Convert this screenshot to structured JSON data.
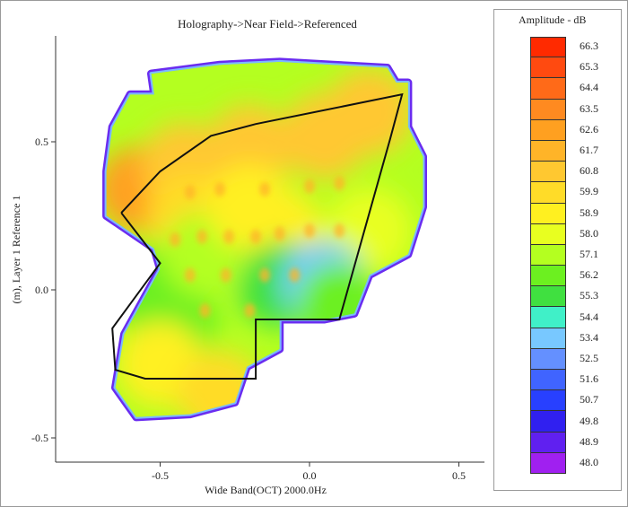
{
  "window": {
    "title": "Holography->Near Field->Referenced"
  },
  "legend": {
    "title": "Amplitude - dB",
    "levels": [
      "66.3",
      "65.3",
      "64.4",
      "63.5",
      "62.6",
      "61.7",
      "60.8",
      "59.9",
      "58.9",
      "58.0",
      "57.1",
      "56.2",
      "55.3",
      "54.4",
      "53.4",
      "52.5",
      "51.6",
      "50.7",
      "49.8",
      "48.9",
      "48.0"
    ],
    "colors": [
      "#ff2a00",
      "#ff4a10",
      "#ff6a18",
      "#ff8a20",
      "#ffa020",
      "#ffb428",
      "#ffc830",
      "#ffdc28",
      "#fff020",
      "#e8ff20",
      "#b4ff20",
      "#6cf020",
      "#40e040",
      "#40f0c8",
      "#78c8ff",
      "#6490ff",
      "#4064ff",
      "#2840ff",
      "#3020f0",
      "#6020f0",
      "#a020f0"
    ]
  },
  "chart_data": {
    "type": "heatmap",
    "title": "Holography->Near Field->Referenced",
    "xlabel": "Wide Band(OCT) 2000.0Hz",
    "ylabel": "(m), Layer 1 Reference 1",
    "x_ticks": [
      "-0.5",
      "0.0",
      "0.5"
    ],
    "y_ticks": [
      "0.5",
      "0.0",
      "-0.5"
    ],
    "x_tick_values": [
      -0.5,
      0.0,
      0.5
    ],
    "y_tick_values": [
      0.5,
      0.0,
      -0.5
    ],
    "xlim": [
      -0.85,
      0.6
    ],
    "ylim": [
      -0.55,
      0.86
    ],
    "value_range": [
      48.0,
      66.3
    ],
    "units": "dB",
    "grid": false,
    "colorbar_position": "right",
    "measured_region_outline": [
      [
        -0.6,
        0.66
      ],
      [
        -0.52,
        0.66
      ],
      [
        -0.53,
        0.73
      ],
      [
        -0.3,
        0.76
      ],
      [
        -0.1,
        0.77
      ],
      [
        0.08,
        0.76
      ],
      [
        0.26,
        0.75
      ],
      [
        0.29,
        0.7
      ],
      [
        0.33,
        0.7
      ],
      [
        0.33,
        0.55
      ],
      [
        0.38,
        0.45
      ],
      [
        0.38,
        0.28
      ],
      [
        0.33,
        0.12
      ],
      [
        0.2,
        0.05
      ],
      [
        0.15,
        -0.08
      ],
      [
        0.05,
        -0.1
      ],
      [
        -0.1,
        -0.1
      ],
      [
        -0.1,
        -0.2
      ],
      [
        -0.21,
        -0.26
      ],
      [
        -0.25,
        -0.38
      ],
      [
        -0.4,
        -0.42
      ],
      [
        -0.58,
        -0.43
      ],
      [
        -0.65,
        -0.33
      ],
      [
        -0.62,
        -0.15
      ],
      [
        -0.5,
        0.07
      ],
      [
        -0.52,
        0.14
      ],
      [
        -0.68,
        0.25
      ],
      [
        -0.68,
        0.4
      ],
      [
        -0.66,
        0.55
      ]
    ],
    "reference_outline": [
      [
        -0.63,
        0.26
      ],
      [
        -0.5,
        0.4
      ],
      [
        -0.33,
        0.52
      ],
      [
        -0.18,
        0.56
      ],
      [
        0.31,
        0.66
      ],
      [
        0.27,
        0.51
      ],
      [
        0.1,
        -0.1
      ],
      [
        -0.18,
        -0.1
      ],
      [
        -0.18,
        -0.3
      ],
      [
        -0.55,
        -0.3
      ],
      [
        -0.65,
        -0.27
      ],
      [
        -0.66,
        -0.13
      ],
      [
        -0.5,
        0.09
      ],
      [
        -0.63,
        0.26
      ]
    ],
    "hotspots": [
      {
        "x": -0.57,
        "y": 0.34,
        "value": 62.6
      },
      {
        "x": -0.42,
        "y": 0.42,
        "value": 60.8
      },
      {
        "x": -0.2,
        "y": 0.48,
        "value": 60.8
      },
      {
        "x": 0.05,
        "y": 0.52,
        "value": 60.8
      },
      {
        "x": 0.2,
        "y": 0.6,
        "value": 60.8
      },
      {
        "x": -0.4,
        "y": 0.25,
        "value": 59.9
      },
      {
        "x": -0.1,
        "y": 0.2,
        "value": 58.9
      },
      {
        "x": 0.2,
        "y": 0.2,
        "value": 58.0
      },
      {
        "x": -0.55,
        "y": 0.0,
        "value": 56.2
      },
      {
        "x": -0.1,
        "y": 0.02,
        "value": 55.3
      },
      {
        "x": 0.05,
        "y": 0.02,
        "value": 53.4
      },
      {
        "x": -0.45,
        "y": -0.1,
        "value": 56.2
      },
      {
        "x": -0.5,
        "y": -0.25,
        "value": 58.9
      },
      {
        "x": -0.3,
        "y": -0.35,
        "value": 59.9
      },
      {
        "x": 0.1,
        "y": -0.05,
        "value": 56.2
      },
      {
        "x": -0.35,
        "y": 0.12,
        "value": 57.1
      },
      {
        "x": -0.2,
        "y": 0.28,
        "value": 58.9
      }
    ],
    "spots": [
      [
        -0.4,
        0.33
      ],
      [
        -0.3,
        0.34
      ],
      [
        -0.15,
        0.34
      ],
      [
        0.0,
        0.35
      ],
      [
        0.1,
        0.36
      ],
      [
        -0.45,
        0.17
      ],
      [
        -0.36,
        0.18
      ],
      [
        -0.27,
        0.18
      ],
      [
        -0.18,
        0.18
      ],
      [
        -0.1,
        0.19
      ],
      [
        0.0,
        0.2
      ],
      [
        0.1,
        0.2
      ],
      [
        -0.4,
        0.05
      ],
      [
        -0.28,
        0.05
      ],
      [
        -0.15,
        0.05
      ],
      [
        -0.05,
        0.05
      ],
      [
        -0.35,
        -0.07
      ],
      [
        -0.2,
        -0.07
      ]
    ]
  }
}
